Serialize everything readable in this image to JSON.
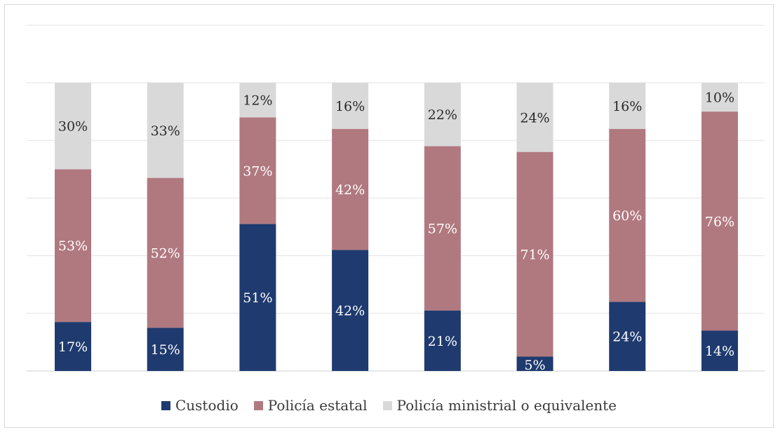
{
  "chart_data": {
    "type": "bar",
    "stacked": true,
    "normalized": true,
    "categories": [
      "",
      "",
      "",
      "",
      "",
      "",
      "",
      ""
    ],
    "ylim": [
      0,
      100
    ],
    "grid": true,
    "legend_position": "bottom",
    "series": [
      {
        "name": "Custodio",
        "color": "#1f3a6e",
        "values": [
          17,
          15,
          51,
          42,
          21,
          5,
          24,
          14
        ],
        "labels": [
          "17%",
          "15%",
          "51%",
          "42%",
          "21%",
          "5%",
          "24%",
          "14%"
        ]
      },
      {
        "name": "Policía estatal",
        "color": "#b0797f",
        "values": [
          53,
          52,
          37,
          42,
          57,
          71,
          60,
          76
        ],
        "labels": [
          "53%",
          "52%",
          "37%",
          "42%",
          "57%",
          "71%",
          "60%",
          "76%"
        ]
      },
      {
        "name": "Policía ministrial o equivalente",
        "color": "#d9d9d9",
        "values": [
          30,
          33,
          12,
          16,
          22,
          24,
          16,
          10
        ],
        "labels": [
          "30%",
          "33%",
          "12%",
          "16%",
          "22%",
          "24%",
          "16%",
          "10%"
        ]
      }
    ]
  }
}
